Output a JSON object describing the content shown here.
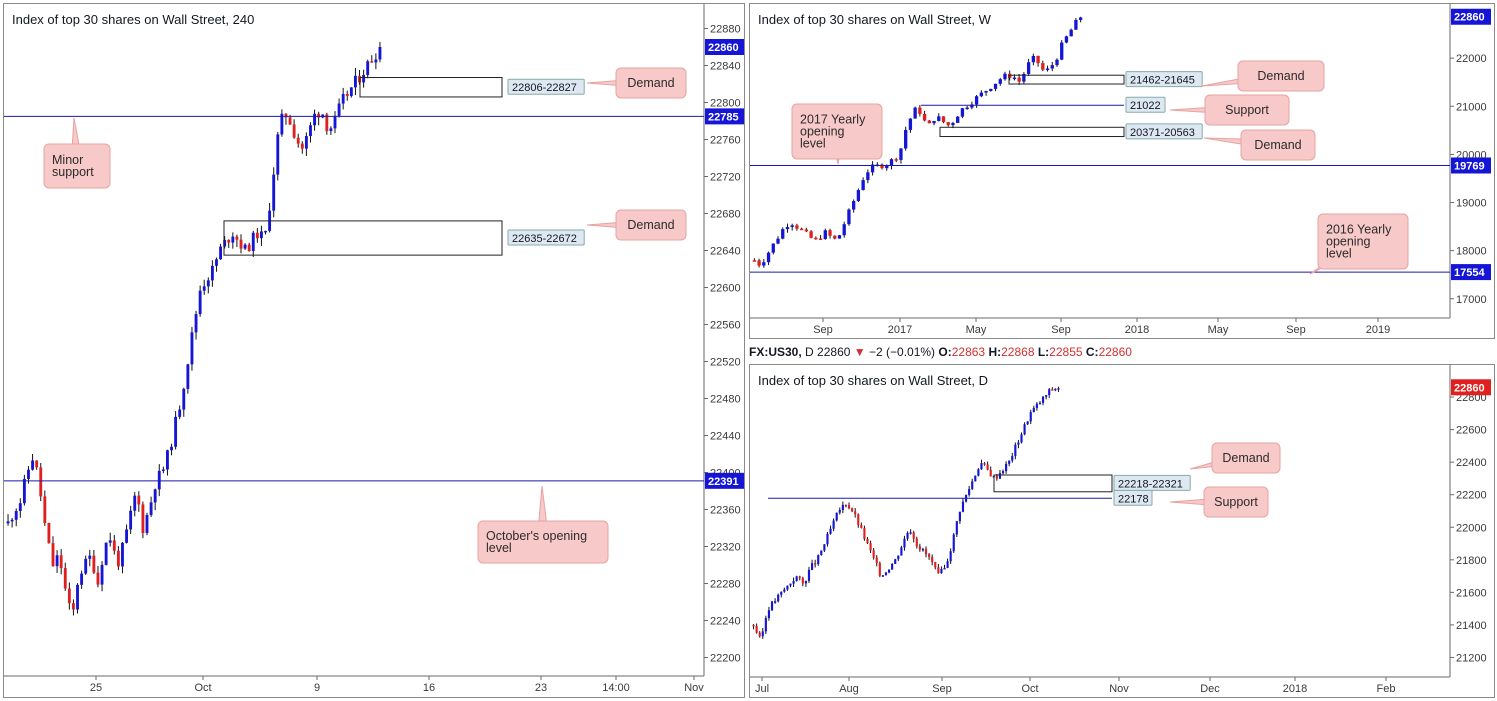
{
  "colors": {
    "up": "#1515d6",
    "down": "#e01f1f",
    "level": "#1a1aa8",
    "badge": "#1515d6",
    "badge_red": "#e01f1f",
    "callout_fill": "#f8c9c9",
    "callout_stroke": "#e6a3a3",
    "zone_label_fill": "#dde8f3"
  },
  "chart_data": [
    {
      "type": "candlestick",
      "title": "Index of top 30 shares on Wall Street, 240",
      "last_price": "22860",
      "ylim": [
        22180,
        22900
      ],
      "y_ticks": [
        "22880",
        "22840",
        "22800",
        "22760",
        "22720",
        "22680",
        "22640",
        "22600",
        "22560",
        "22520",
        "22480",
        "22440",
        "22400",
        "22360",
        "22320",
        "22280",
        "22240",
        "22200"
      ],
      "x_ticks": [
        "25",
        "Oct",
        "9",
        "16",
        "23",
        "14:00",
        "Nov"
      ],
      "levels": [
        {
          "value": "22785",
          "label": "22785",
          "callout": "Minor\nsupport"
        },
        {
          "value": "22391",
          "label": "22391",
          "callout": "October's opening\nlevel"
        }
      ],
      "zones": [
        {
          "low": 22806,
          "high": 22827,
          "label": "22806-22827",
          "callout": "Demand"
        },
        {
          "low": 22635,
          "high": 22672,
          "label": "22635-22672",
          "callout": "Demand"
        }
      ]
    },
    {
      "type": "candlestick",
      "title": "Index of top 30 shares on Wall Street, W",
      "last_price": "22860",
      "ylim": [
        16600,
        23000
      ],
      "y_ticks": [
        "22000",
        "21000",
        "20000",
        "19000",
        "18000",
        "17000"
      ],
      "x_ticks": [
        "Sep",
        "2017",
        "May",
        "Sep",
        "2018",
        "May",
        "Sep",
        "2019"
      ],
      "levels": [
        {
          "value": "19769",
          "label": "19769",
          "callout": "2017 Yearly\nopening\nlevel"
        },
        {
          "value": "17554",
          "label": "17554",
          "callout": "2016 Yearly\nopening\nlevel"
        }
      ],
      "zones": [
        {
          "low": 21462,
          "high": 21645,
          "label": "21462-21645",
          "callout": "Demand"
        },
        {
          "low": 21022,
          "high": 21022,
          "label": "21022",
          "callout": "Support"
        },
        {
          "low": 20371,
          "high": 20563,
          "label": "20371-20563",
          "callout": "Demand"
        }
      ]
    },
    {
      "type": "candlestick",
      "title": "Index of top 30 shares on Wall Street, D",
      "last_price": "22860",
      "ylim": [
        21080,
        22960
      ],
      "y_ticks": [
        "22800",
        "22600",
        "22400",
        "22200",
        "22000",
        "21800",
        "21600",
        "21400",
        "21200"
      ],
      "x_ticks": [
        "Jul",
        "Aug",
        "Sep",
        "Oct",
        "Nov",
        "Dec",
        "2018",
        "Feb"
      ],
      "levels": [
        {
          "value": "22178",
          "label": "22178",
          "callout": "Support"
        }
      ],
      "zones": [
        {
          "low": 22218,
          "high": 22321,
          "label": "22218-22321",
          "callout": "Demand"
        }
      ]
    }
  ],
  "info_bar": {
    "symbol": "FX:US30,",
    "timeframe": "D",
    "price": "22860",
    "change": "−2 (−0.01%)",
    "o_label": "O:",
    "o_val": "22863",
    "h_label": "H:",
    "h_val": "22868",
    "l_label": "L:",
    "l_val": "22855",
    "c_label": "C:",
    "c_val": "22860"
  }
}
